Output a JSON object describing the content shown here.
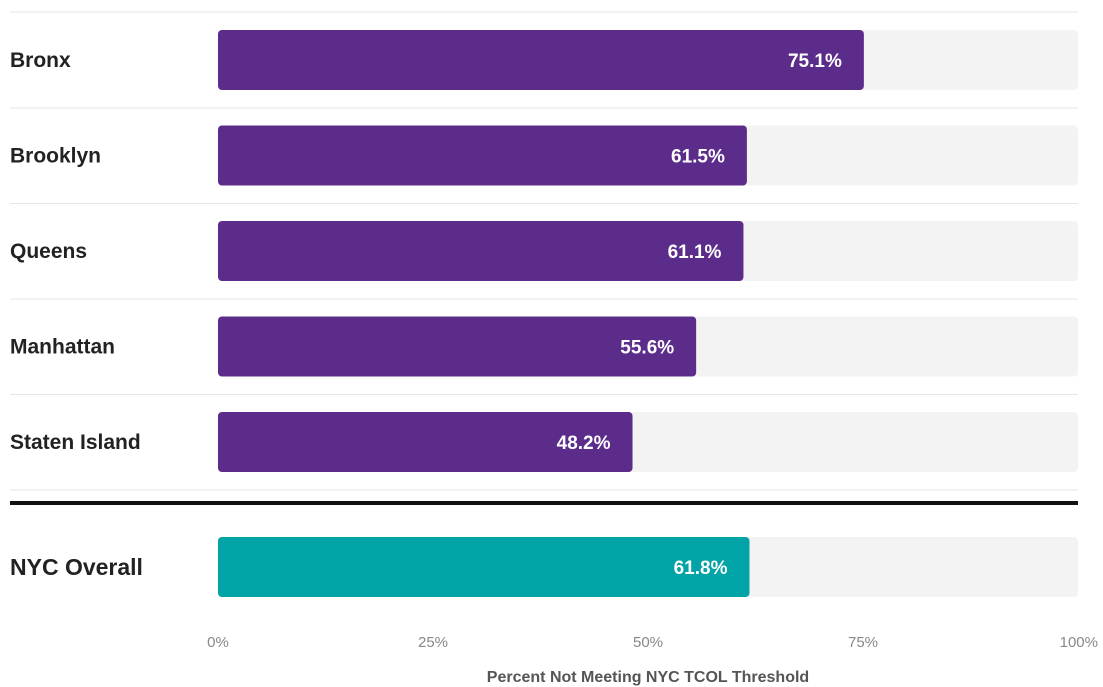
{
  "chart_data": {
    "type": "bar",
    "orientation": "horizontal",
    "categories": [
      "Bronx",
      "Brooklyn",
      "Queens",
      "Manhattan",
      "Staten Island"
    ],
    "values": [
      75.1,
      61.5,
      61.1,
      55.6,
      48.2
    ],
    "value_labels": [
      "75.1%",
      "61.5%",
      "61.1%",
      "55.6%",
      "48.2%"
    ],
    "overall": {
      "label": "NYC Overall",
      "value": 61.8,
      "value_label": "61.8%"
    },
    "xlabel": "Percent Not Meeting NYC TCOL Threshold",
    "xlim": [
      0,
      100
    ],
    "xticks": [
      0,
      25,
      50,
      75,
      100
    ],
    "xtick_labels": [
      "0%",
      "25%",
      "50%",
      "75%",
      "100%"
    ],
    "grid": false,
    "legend": "none",
    "colors": {
      "borough_bar": "#5b2c8a",
      "overall_bar": "#00a3a6",
      "track": "#f3f3f3",
      "separator": "#111111",
      "row_divider": "#e6e6e6"
    }
  }
}
